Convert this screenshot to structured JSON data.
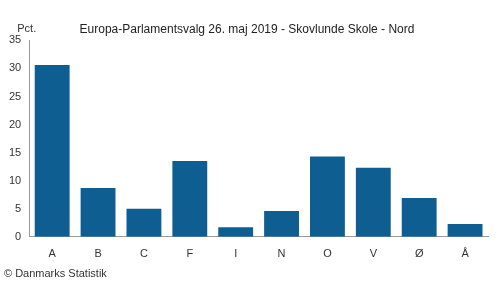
{
  "chart_data": {
    "type": "bar",
    "title": "Europa-Parlamentsvalg 26. maj 2019 - Skovlunde Skole - Nord",
    "ylabel": "Pct.",
    "source": "© Danmarks Statistik",
    "categories": [
      "A",
      "B",
      "C",
      "F",
      "I",
      "N",
      "O",
      "V",
      "Ø",
      "Å"
    ],
    "values": [
      30.6,
      8.7,
      5.0,
      13.5,
      1.7,
      4.6,
      14.3,
      12.3,
      6.9,
      2.3
    ],
    "color": "#0f5e91",
    "ylim": [
      0,
      35
    ],
    "yticks": [
      0,
      5,
      10,
      15,
      20,
      25,
      30,
      35
    ],
    "grid": false
  }
}
